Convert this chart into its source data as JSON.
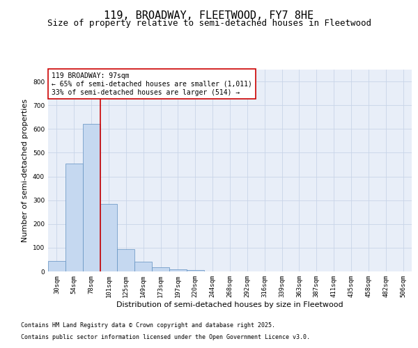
{
  "title": "119, BROADWAY, FLEETWOOD, FY7 8HE",
  "subtitle": "Size of property relative to semi-detached houses in Fleetwood",
  "xlabel": "Distribution of semi-detached houses by size in Fleetwood",
  "ylabel": "Number of semi-detached properties",
  "categories": [
    "30sqm",
    "54sqm",
    "78sqm",
    "101sqm",
    "125sqm",
    "149sqm",
    "173sqm",
    "197sqm",
    "220sqm",
    "244sqm",
    "268sqm",
    "292sqm",
    "316sqm",
    "339sqm",
    "363sqm",
    "387sqm",
    "411sqm",
    "435sqm",
    "458sqm",
    "482sqm",
    "506sqm"
  ],
  "values": [
    45,
    455,
    620,
    285,
    95,
    40,
    18,
    8,
    5,
    1,
    0,
    0,
    0,
    0,
    0,
    0,
    0,
    0,
    0,
    0,
    0
  ],
  "bar_color": "#c5d8f0",
  "bar_edge_color": "#6090c0",
  "grid_color": "#c8d4e8",
  "background_color": "#e8eef8",
  "vline_color": "#cc0000",
  "annotation_text": "119 BROADWAY: 97sqm\n← 65% of semi-detached houses are smaller (1,011)\n33% of semi-detached houses are larger (514) →",
  "annotation_box_color": "#cc0000",
  "ylim": [
    0,
    850
  ],
  "yticks": [
    0,
    100,
    200,
    300,
    400,
    500,
    600,
    700,
    800
  ],
  "footer_line1": "Contains HM Land Registry data © Crown copyright and database right 2025.",
  "footer_line2": "Contains public sector information licensed under the Open Government Licence v3.0.",
  "title_fontsize": 11,
  "subtitle_fontsize": 9,
  "axis_label_fontsize": 8,
  "tick_fontsize": 6.5,
  "annotation_fontsize": 7,
  "footer_fontsize": 6
}
